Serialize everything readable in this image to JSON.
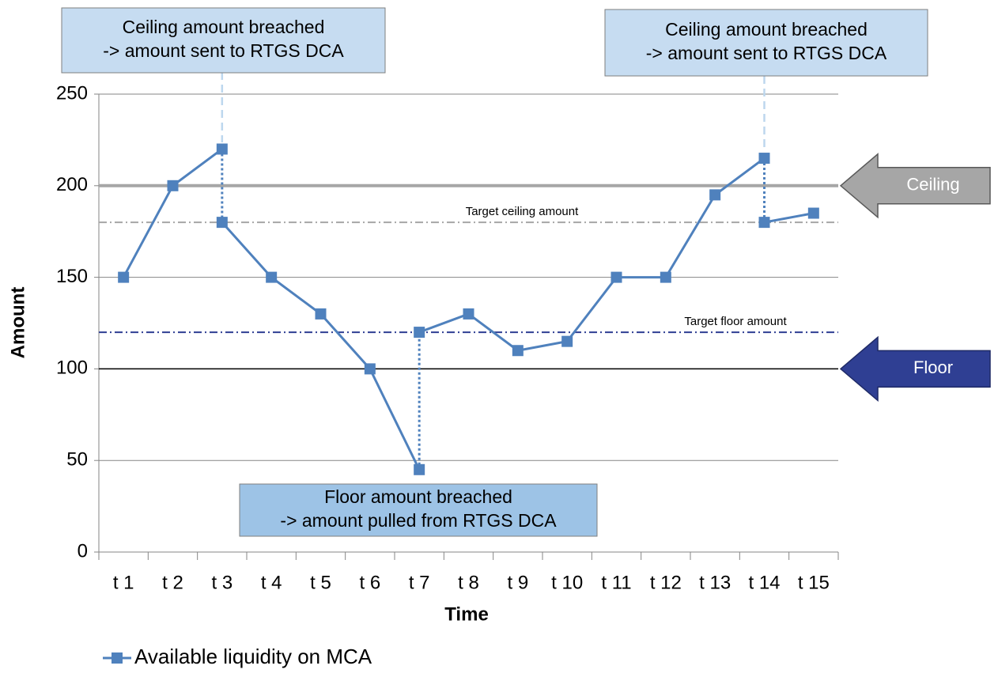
{
  "chart_data": {
    "type": "line",
    "x_label": "Time",
    "y_label": "Amount",
    "categories": [
      "t 1",
      "t 2",
      "t 3",
      "t 4",
      "t 5",
      "t 6",
      "t 7",
      "t 8",
      "t 9",
      "t 10",
      "t 11",
      "t 12",
      "t 13",
      "t 14",
      "t 15"
    ],
    "series": [
      {
        "name": "Available liquidity on MCA",
        "color": "#4f81bd",
        "values": [
          150,
          200,
          220,
          150,
          130,
          100,
          45,
          130,
          110,
          115,
          150,
          150,
          195,
          215,
          185
        ],
        "adjusted_values": [
          null,
          null,
          180,
          null,
          null,
          null,
          120,
          null,
          null,
          null,
          null,
          null,
          null,
          180,
          null
        ]
      }
    ],
    "ylim": [
      0,
      250
    ],
    "yticks": [
      0,
      50,
      100,
      150,
      200,
      250
    ],
    "grid": true,
    "reference_lines": [
      {
        "value": 200,
        "color": "#a6a6a6",
        "style": "solid"
      },
      {
        "value": 180,
        "color": "#a6a6a6",
        "style": "dashdot",
        "label": "Target ceiling amount"
      },
      {
        "value": 120,
        "color": "#2f3f93",
        "style": "dashdot",
        "label": "Target floor amount"
      },
      {
        "value": 100,
        "color": "#000000",
        "style": "solid"
      }
    ],
    "arrows": [
      {
        "label": "Ceiling",
        "value": 200,
        "color": "#a6a6a6"
      },
      {
        "label": "Floor",
        "value": 100,
        "color": "#2f3f93"
      }
    ],
    "annotations": [
      {
        "lines": [
          "Ceiling amount breached",
          "-> amount sent to RTGS DCA"
        ]
      },
      {
        "lines": [
          "Ceiling amount breached",
          "-> amount sent to RTGS DCA"
        ]
      },
      {
        "lines": [
          "Floor amount breached",
          "-> amount pulled from RTGS DCA"
        ]
      }
    ]
  }
}
